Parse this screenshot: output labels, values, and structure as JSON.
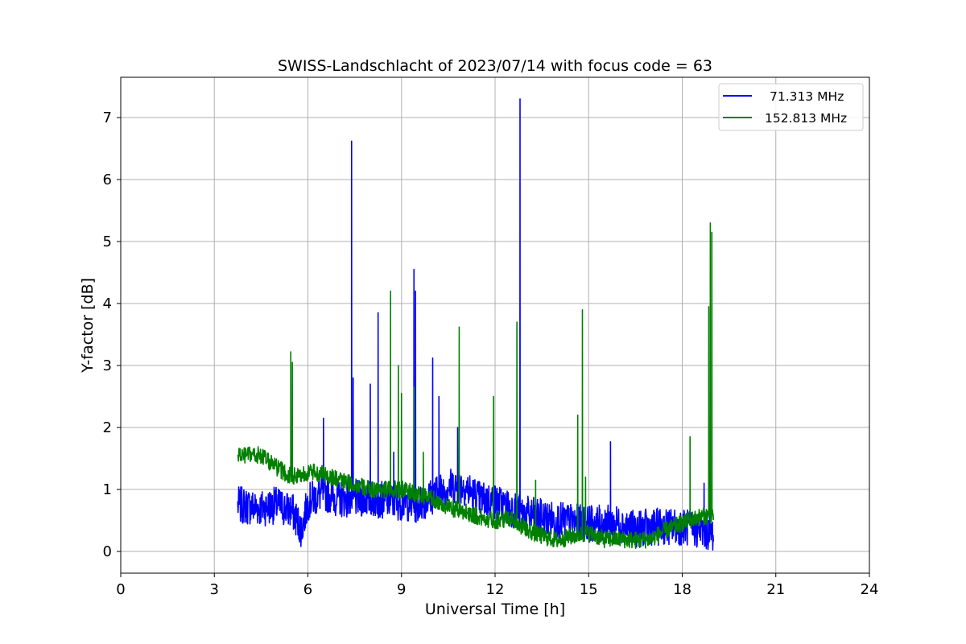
{
  "chart_data": {
    "type": "line",
    "title": "SWISS-Landschlacht of 2023/07/14 with focus code = 63",
    "xlabel": "Universal Time [h]",
    "ylabel": "Y-factor [dB]",
    "xlim": [
      0,
      24
    ],
    "ylim": [
      -0.35,
      7.65
    ],
    "xticks": [
      "0",
      "3",
      "6",
      "9",
      "12",
      "15",
      "18",
      "21",
      "24"
    ],
    "yticks": [
      "0",
      "1",
      "2",
      "3",
      "4",
      "5",
      "6",
      "7"
    ],
    "grid": true,
    "legend_position": "top-right",
    "series": [
      {
        "name": "71.313 MHz",
        "color": "#0000ff",
        "x_range": [
          3.75,
          19.0
        ],
        "baseline": [
          [
            3.75,
            0.75
          ],
          [
            4.5,
            0.7
          ],
          [
            5.0,
            0.75
          ],
          [
            5.5,
            0.65
          ],
          [
            5.8,
            0.35
          ],
          [
            6.0,
            0.8
          ],
          [
            6.5,
            0.95
          ],
          [
            7.0,
            0.85
          ],
          [
            8.0,
            0.85
          ],
          [
            9.0,
            0.8
          ],
          [
            9.5,
            0.75
          ],
          [
            10.0,
            0.9
          ],
          [
            10.5,
            1.05
          ],
          [
            11.0,
            1.05
          ],
          [
            11.5,
            0.85
          ],
          [
            12.0,
            0.8
          ],
          [
            12.5,
            0.7
          ],
          [
            13.0,
            0.6
          ],
          [
            14.0,
            0.5
          ],
          [
            15.0,
            0.45
          ],
          [
            16.0,
            0.45
          ],
          [
            16.5,
            0.35
          ],
          [
            17.0,
            0.4
          ],
          [
            18.0,
            0.4
          ],
          [
            19.0,
            0.3
          ]
        ],
        "spikes": [
          [
            6.5,
            2.15
          ],
          [
            7.4,
            6.62
          ],
          [
            7.45,
            2.8
          ],
          [
            8.0,
            2.7
          ],
          [
            8.25,
            3.85
          ],
          [
            8.75,
            1.6
          ],
          [
            9.4,
            4.55
          ],
          [
            9.45,
            4.2
          ],
          [
            10.0,
            3.12
          ],
          [
            10.2,
            2.5
          ],
          [
            10.8,
            2.0
          ],
          [
            12.8,
            7.3
          ],
          [
            15.7,
            1.77
          ],
          [
            18.7,
            1.1
          ]
        ]
      },
      {
        "name": "152.813 MHz",
        "color": "#008000",
        "x_range": [
          3.75,
          19.0
        ],
        "baseline": [
          [
            3.75,
            1.55
          ],
          [
            4.5,
            1.55
          ],
          [
            5.0,
            1.35
          ],
          [
            5.5,
            1.2
          ],
          [
            6.0,
            1.28
          ],
          [
            6.5,
            1.25
          ],
          [
            7.0,
            1.15
          ],
          [
            8.0,
            1.0
          ],
          [
            9.0,
            1.0
          ],
          [
            10.0,
            0.85
          ],
          [
            10.5,
            0.7
          ],
          [
            11.0,
            0.65
          ],
          [
            11.5,
            0.55
          ],
          [
            12.0,
            0.5
          ],
          [
            12.5,
            0.55
          ],
          [
            13.0,
            0.35
          ],
          [
            13.5,
            0.25
          ],
          [
            14.0,
            0.18
          ],
          [
            14.5,
            0.25
          ],
          [
            15.0,
            0.3
          ],
          [
            15.5,
            0.2
          ],
          [
            16.0,
            0.2
          ],
          [
            16.5,
            0.18
          ],
          [
            17.0,
            0.2
          ],
          [
            17.5,
            0.35
          ],
          [
            18.0,
            0.45
          ],
          [
            18.5,
            0.55
          ],
          [
            19.0,
            0.6
          ]
        ],
        "spikes": [
          [
            5.45,
            3.22
          ],
          [
            5.5,
            3.05
          ],
          [
            8.65,
            4.2
          ],
          [
            8.9,
            3.0
          ],
          [
            9.0,
            2.55
          ],
          [
            9.4,
            2.65
          ],
          [
            9.7,
            1.6
          ],
          [
            10.85,
            3.62
          ],
          [
            11.95,
            2.5
          ],
          [
            12.7,
            3.7
          ],
          [
            13.3,
            1.15
          ],
          [
            14.65,
            2.2
          ],
          [
            14.8,
            3.9
          ],
          [
            14.9,
            1.2
          ],
          [
            18.25,
            1.85
          ],
          [
            18.85,
            3.95
          ],
          [
            18.9,
            5.3
          ],
          [
            18.95,
            5.15
          ]
        ]
      }
    ]
  }
}
